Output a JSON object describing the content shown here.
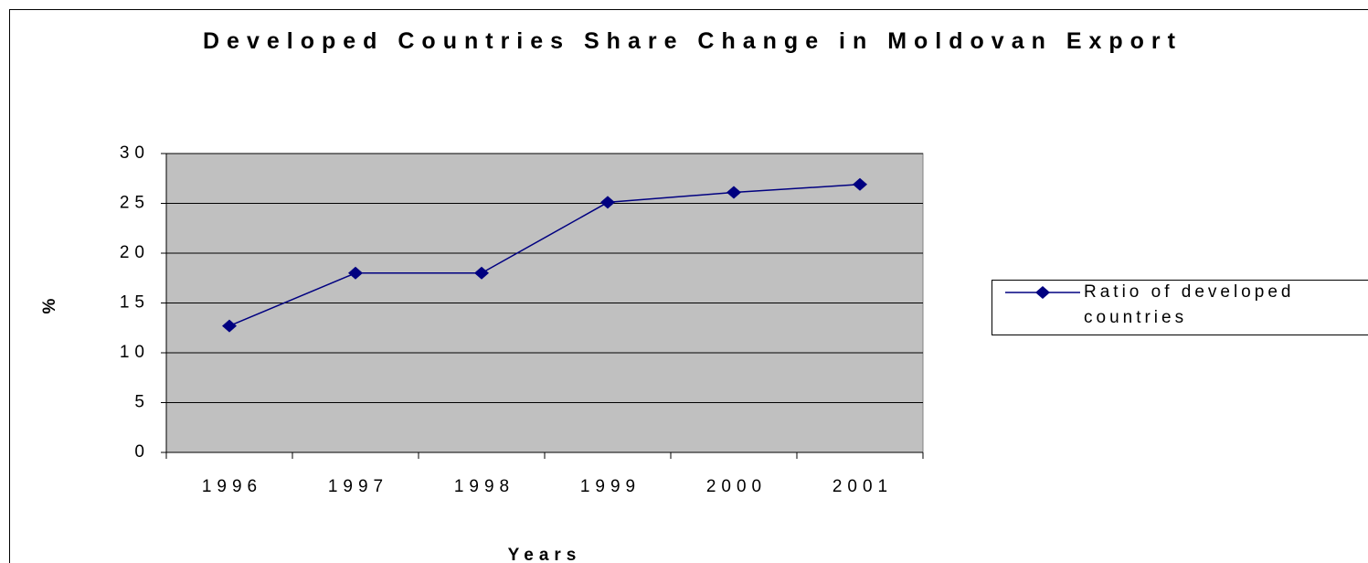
{
  "chart_data": {
    "type": "line",
    "title": "Developed Countries Share Change in Moldovan Export",
    "x_label": "Years",
    "y_label": "%",
    "categories": [
      "1996",
      "1997",
      "1998",
      "1999",
      "2000",
      "2001"
    ],
    "series": [
      {
        "name": "Ratio of developed countries",
        "color": "#000080",
        "values": [
          12.7,
          18,
          18,
          25.1,
          26.1,
          26.9
        ]
      }
    ],
    "ylim": [
      0,
      30
    ],
    "yticks": [
      0,
      5,
      10,
      15,
      20,
      25,
      30
    ],
    "grid": true,
    "legend": "right"
  }
}
